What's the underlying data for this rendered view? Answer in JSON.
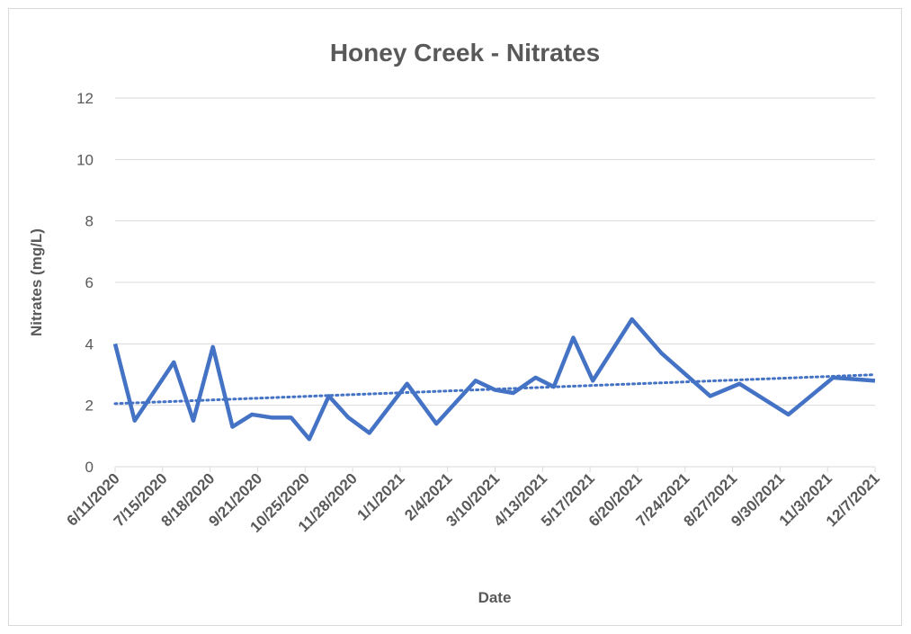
{
  "chart_data": {
    "type": "line",
    "title": "Honey Creek - Nitrates",
    "xlabel": "Date",
    "ylabel": "Nitrates (mg/L)",
    "x": [
      "6/11/2020",
      "6/25/2020",
      "7/23/2020",
      "8/6/2020",
      "8/20/2020",
      "9/3/2020",
      "9/17/2020",
      "10/1/2020",
      "10/15/2020",
      "10/28/2020",
      "11/11/2020",
      "11/25/2020",
      "12/10/2020",
      "1/6/2021",
      "1/27/2021",
      "2/24/2021",
      "3/10/2021",
      "3/23/2021",
      "4/8/2021",
      "4/21/2021",
      "5/5/2021",
      "5/19/2021",
      "6/16/2021",
      "7/7/2021",
      "8/11/2021",
      "9/1/2021",
      "10/6/2021",
      "11/7/2021",
      "12/7/2021"
    ],
    "series": [
      {
        "name": "Nitrates",
        "color": "#4472c4",
        "values": [
          4.0,
          1.5,
          3.4,
          1.5,
          3.9,
          1.3,
          1.7,
          1.6,
          1.6,
          0.9,
          2.3,
          1.6,
          1.1,
          2.7,
          1.4,
          2.8,
          2.5,
          2.4,
          2.9,
          2.6,
          4.2,
          2.8,
          4.8,
          3.7,
          2.3,
          2.7,
          1.7,
          2.9,
          2.8
        ]
      }
    ],
    "trendline": "linear",
    "xlim": [
      "6/11/2020",
      "12/7/2021"
    ],
    "xticks": [
      "6/11/2020",
      "7/15/2020",
      "8/18/2020",
      "9/21/2020",
      "10/25/2020",
      "11/28/2020",
      "1/1/2021",
      "2/4/2021",
      "3/10/2021",
      "4/13/2021",
      "5/17/2021",
      "6/20/2021",
      "7/24/2021",
      "8/27/2021",
      "9/30/2021",
      "11/3/2021",
      "12/7/2021"
    ],
    "ylim": [
      0,
      12
    ],
    "yticks": [
      0,
      2,
      4,
      6,
      8,
      10,
      12
    ],
    "grid": true
  }
}
